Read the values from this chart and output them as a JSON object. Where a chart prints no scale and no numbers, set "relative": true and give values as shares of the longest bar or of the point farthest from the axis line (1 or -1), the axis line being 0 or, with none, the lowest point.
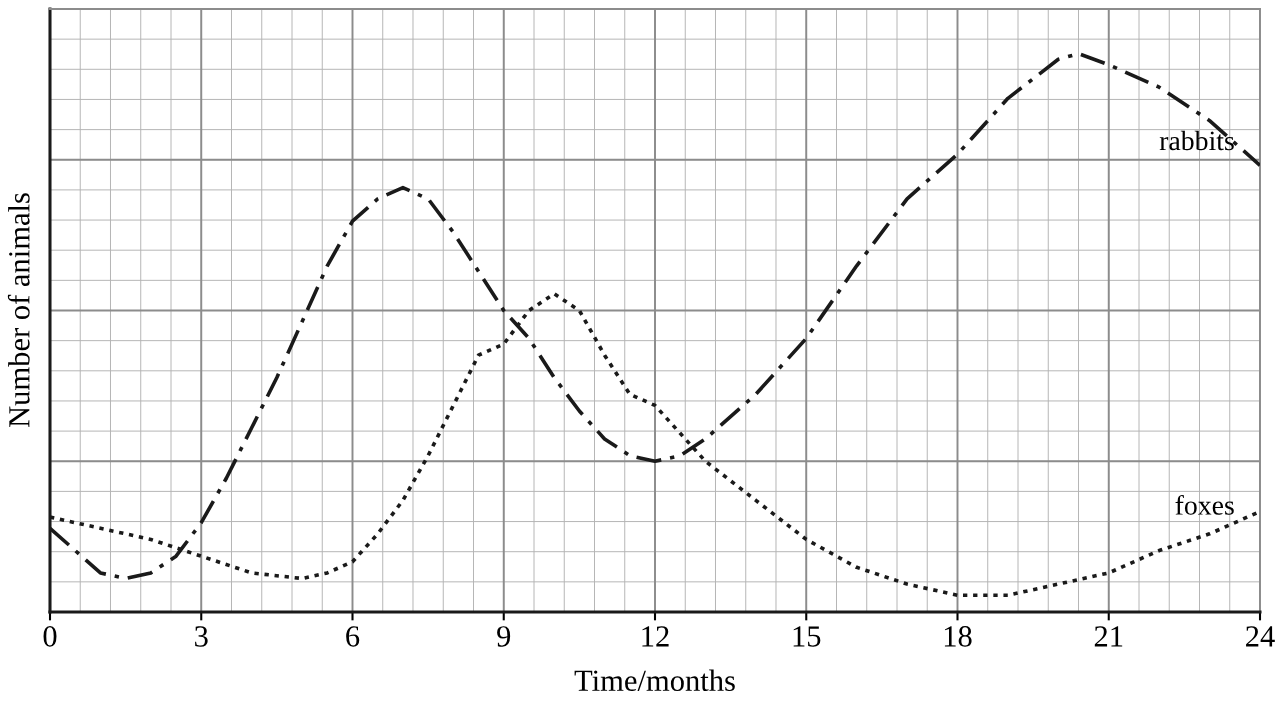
{
  "chart_data": {
    "type": "line",
    "xlabel": "Time/months",
    "ylabel": "Number of animals",
    "relative": true,
    "xlim": [
      0,
      24
    ],
    "xticks": [
      0,
      3,
      6,
      9,
      12,
      15,
      18,
      21,
      24
    ],
    "grid": true,
    "legend": false,
    "marker": "none",
    "series": [
      {
        "name": "rabbits",
        "color": "#1a1a1a",
        "line_style": "dashdot",
        "x": [
          0,
          0.5,
          1,
          1.5,
          2,
          2.5,
          3,
          3.5,
          4,
          4.5,
          5,
          5.5,
          6,
          6.5,
          7,
          7.5,
          8,
          8.5,
          9,
          9.5,
          10,
          10.5,
          11,
          11.5,
          12,
          12.5,
          13,
          14,
          15,
          16,
          17,
          18,
          19,
          20,
          20.4,
          21,
          22,
          23,
          24
        ],
        "values": [
          0.15,
          0.11,
          0.07,
          0.06,
          0.07,
          0.1,
          0.16,
          0.24,
          0.33,
          0.42,
          0.52,
          0.62,
          0.7,
          0.74,
          0.76,
          0.74,
          0.68,
          0.61,
          0.54,
          0.49,
          0.42,
          0.36,
          0.31,
          0.28,
          0.27,
          0.28,
          0.31,
          0.39,
          0.49,
          0.62,
          0.74,
          0.82,
          0.92,
          0.99,
          1,
          0.98,
          0.94,
          0.88,
          0.8
        ]
      },
      {
        "name": "foxes",
        "color": "#1a1a1a",
        "line_style": "dotted",
        "x": [
          0,
          1,
          2,
          3,
          4,
          5,
          5.5,
          6,
          6.5,
          7,
          7.5,
          8,
          8.5,
          9,
          9.5,
          10,
          10.5,
          11,
          11.5,
          12,
          12.5,
          13,
          14,
          15,
          16,
          17,
          18,
          19,
          20,
          21,
          22,
          23,
          24
        ],
        "values": [
          0.17,
          0.15,
          0.13,
          0.1,
          0.07,
          0.06,
          0.07,
          0.09,
          0.14,
          0.2,
          0.28,
          0.37,
          0.46,
          0.48,
          0.54,
          0.57,
          0.54,
          0.46,
          0.39,
          0.37,
          0.32,
          0.27,
          0.2,
          0.13,
          0.08,
          0.05,
          0.03,
          0.03,
          0.05,
          0.07,
          0.11,
          0.14,
          0.18
        ]
      }
    ]
  }
}
